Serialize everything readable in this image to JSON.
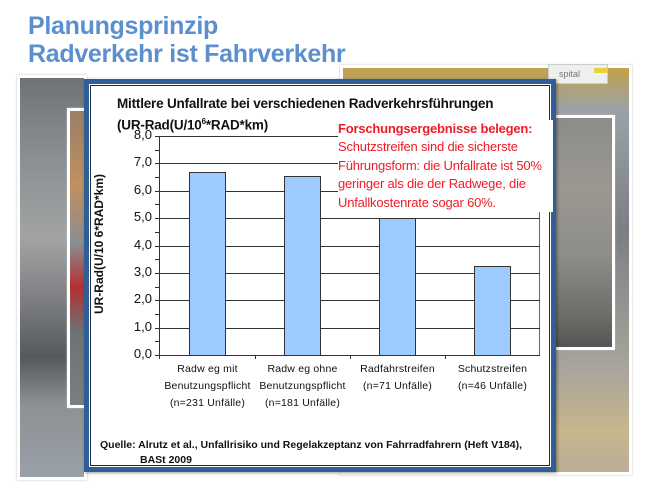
{
  "slide": {
    "title_line1": "Planungsprinzip",
    "title_line2": "Radverkehr ist Fahrverkehr"
  },
  "background": {
    "sign_text": "spital"
  },
  "note": {
    "heading": "Forschungsergebnisse belegen:",
    "body": "Schutzstreifen sind die sicherste Führungsform: die Unfallrate ist 50% geringer als die der Radwege, die Unfallkostenrate sogar 60%.",
    "color": "#ee1c25"
  },
  "source": {
    "line1": "Quelle: Alrutz et al., Unfallrisiko und Regelakzeptanz von Fahrradfahrern (Heft V184),",
    "line2": "BASt 2009"
  },
  "chart_data": {
    "type": "bar",
    "title": "Mittlere Unfallrate bei verschiedenen Radverkehrsführungen",
    "subtitle_prefix": "(UR-Rad(U/10",
    "subtitle_sup": "6",
    "subtitle_suffix": "*RAD*km)",
    "xlabel": "",
    "ylabel": "UR-Rad(U/10 6*RAD*km)",
    "ylim": [
      0,
      8
    ],
    "y_ticks": [
      "8,0",
      "7,0",
      "6,0",
      "5,0",
      "4,0",
      "3,0",
      "2,0",
      "1,0",
      "0,0"
    ],
    "grid": true,
    "bar_color": "#9dcbff",
    "categories": [
      [
        "Radw eg mit",
        "Benutzungspflicht",
        "(n=231 Unfälle)"
      ],
      [
        "Radw eg ohne",
        "Benutzungspflicht",
        "(n=181 Unfälle)"
      ],
      [
        "Radfahrstreifen",
        "(n=71 Unfälle)"
      ],
      [
        "Schutzstreifen",
        "(n=46 Unfälle)"
      ]
    ],
    "values": [
      6.7,
      6.55,
      5.0,
      3.25
    ]
  }
}
